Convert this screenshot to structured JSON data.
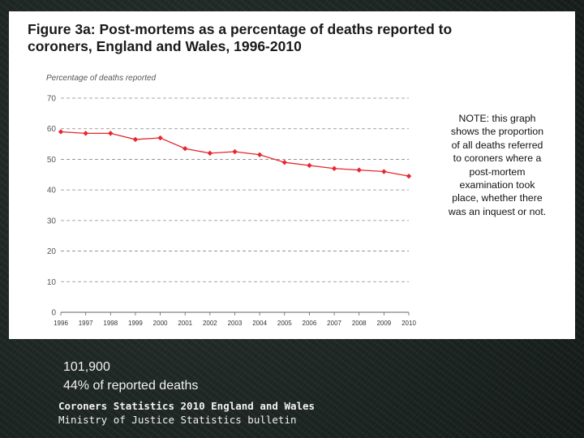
{
  "slide": {
    "caption_line1": "101,900",
    "caption_line2": "44% of reported deaths",
    "source_title": "Coroners Statistics 2010 England and Wales",
    "source_subtitle": "Ministry of Justice Statistics bulletin"
  },
  "note": "NOTE: this graph shows the proportion of all deaths referred to coroners where a post-mortem examination took place, whether there was an inquest or not.",
  "chart_data": {
    "type": "line",
    "title": "Figure 3a: Post-mortems as a percentage of deaths reported to coroners, England and Wales, 1996-2010",
    "xlabel": "",
    "ylabel": "Percentage of deaths reported",
    "categories": [
      "1996",
      "1997",
      "1998",
      "1999",
      "2000",
      "2001",
      "2002",
      "2003",
      "2004",
      "2005",
      "2006",
      "2007",
      "2008",
      "2009",
      "2010"
    ],
    "series": [
      {
        "values": [
          59,
          58.5,
          58.5,
          56.5,
          57,
          53.5,
          52,
          52.5,
          51.5,
          49,
          48,
          47,
          46.5,
          46,
          44.5
        ]
      }
    ],
    "ylim": [
      0,
      70
    ],
    "yticks": [
      0,
      10,
      20,
      30,
      40,
      50,
      60,
      70
    ],
    "grid": true,
    "colors": {
      "line": "#e8262d",
      "grid": "#888888",
      "axis": "#666666"
    }
  }
}
